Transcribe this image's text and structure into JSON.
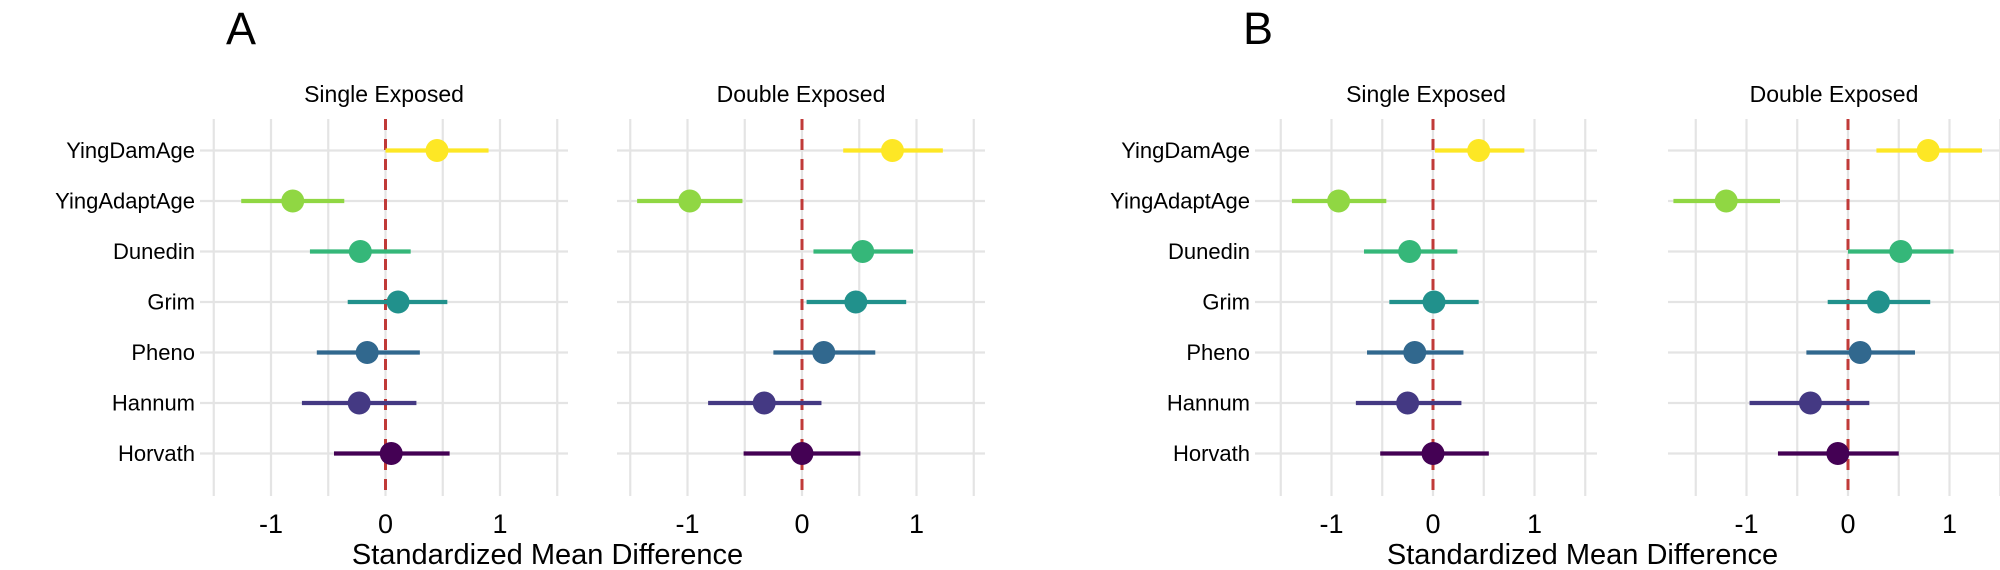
{
  "chart_data": {
    "type": "scatter",
    "subtype": "forest-dot-whisker",
    "xlabel": "Standardized Mean Difference",
    "x_ticks": [
      "-1",
      "0",
      "1"
    ],
    "x_tick_values": [
      -1,
      0,
      1
    ],
    "x_gridline_values": [
      -1.5,
      -1,
      -0.5,
      0,
      0.5,
      1,
      1.5
    ],
    "xlim": [
      -1.75,
      1.65
    ],
    "grid": "on",
    "legend_position": "none",
    "reference_line": {
      "x": 0,
      "color": "#C03A38",
      "style": "dashed"
    },
    "gridline_color": "#E4E4E4",
    "categories": [
      "YingDamAge",
      "YingAdaptAge",
      "Dunedin",
      "Grim",
      "Pheno",
      "Hannum",
      "Horvath"
    ],
    "category_colors": {
      "YingDamAge": "#FDE725",
      "YingAdaptAge": "#90D743",
      "Dunedin": "#35B779",
      "Grim": "#21918C",
      "Pheno": "#31688E",
      "Hannum": "#443983",
      "Horvath": "#440154"
    },
    "panels": [
      {
        "letter": "A",
        "facets": [
          {
            "title": "Single Exposed",
            "series": [
              {
                "category": "YingDamAge",
                "estimate": 0.45,
                "ci_low": 0.0,
                "ci_high": 0.9
              },
              {
                "category": "YingAdaptAge",
                "estimate": -0.81,
                "ci_low": -1.26,
                "ci_high": -0.36
              },
              {
                "category": "Dunedin",
                "estimate": -0.22,
                "ci_low": -0.66,
                "ci_high": 0.22
              },
              {
                "category": "Grim",
                "estimate": 0.11,
                "ci_low": -0.33,
                "ci_high": 0.54
              },
              {
                "category": "Pheno",
                "estimate": -0.16,
                "ci_low": -0.6,
                "ci_high": 0.3
              },
              {
                "category": "Hannum",
                "estimate": -0.23,
                "ci_low": -0.73,
                "ci_high": 0.27
              },
              {
                "category": "Horvath",
                "estimate": 0.05,
                "ci_low": -0.45,
                "ci_high": 0.56
              }
            ]
          },
          {
            "title": "Double Exposed",
            "series": [
              {
                "category": "YingDamAge",
                "estimate": 0.79,
                "ci_low": 0.36,
                "ci_high": 1.23
              },
              {
                "category": "YingAdaptAge",
                "estimate": -0.98,
                "ci_low": -1.44,
                "ci_high": -0.52
              },
              {
                "category": "Dunedin",
                "estimate": 0.53,
                "ci_low": 0.1,
                "ci_high": 0.97
              },
              {
                "category": "Grim",
                "estimate": 0.47,
                "ci_low": 0.04,
                "ci_high": 0.91
              },
              {
                "category": "Pheno",
                "estimate": 0.19,
                "ci_low": -0.25,
                "ci_high": 0.64
              },
              {
                "category": "Hannum",
                "estimate": -0.33,
                "ci_low": -0.82,
                "ci_high": 0.17
              },
              {
                "category": "Horvath",
                "estimate": 0.0,
                "ci_low": -0.51,
                "ci_high": 0.51
              }
            ]
          }
        ]
      },
      {
        "letter": "B",
        "facets": [
          {
            "title": "Single Exposed",
            "series": [
              {
                "category": "YingDamAge",
                "estimate": 0.45,
                "ci_low": 0.02,
                "ci_high": 0.9
              },
              {
                "category": "YingAdaptAge",
                "estimate": -0.93,
                "ci_low": -1.39,
                "ci_high": -0.46
              },
              {
                "category": "Dunedin",
                "estimate": -0.23,
                "ci_low": -0.68,
                "ci_high": 0.24
              },
              {
                "category": "Grim",
                "estimate": 0.01,
                "ci_low": -0.43,
                "ci_high": 0.45
              },
              {
                "category": "Pheno",
                "estimate": -0.18,
                "ci_low": -0.65,
                "ci_high": 0.3
              },
              {
                "category": "Hannum",
                "estimate": -0.25,
                "ci_low": -0.76,
                "ci_high": 0.28
              },
              {
                "category": "Horvath",
                "estimate": 0.0,
                "ci_low": -0.52,
                "ci_high": 0.55
              }
            ]
          },
          {
            "title": "Double Exposed",
            "series": [
              {
                "category": "YingDamAge",
                "estimate": 0.79,
                "ci_low": 0.28,
                "ci_high": 1.32
              },
              {
                "category": "YingAdaptAge",
                "estimate": -1.2,
                "ci_low": -1.72,
                "ci_high": -0.67
              },
              {
                "category": "Dunedin",
                "estimate": 0.52,
                "ci_low": 0.0,
                "ci_high": 1.04
              },
              {
                "category": "Grim",
                "estimate": 0.3,
                "ci_low": -0.2,
                "ci_high": 0.81
              },
              {
                "category": "Pheno",
                "estimate": 0.12,
                "ci_low": -0.41,
                "ci_high": 0.66
              },
              {
                "category": "Hannum",
                "estimate": -0.37,
                "ci_low": -0.97,
                "ci_high": 0.21
              },
              {
                "category": "Horvath",
                "estimate": -0.1,
                "ci_low": -0.69,
                "ci_high": 0.5
              }
            ]
          }
        ]
      }
    ]
  }
}
